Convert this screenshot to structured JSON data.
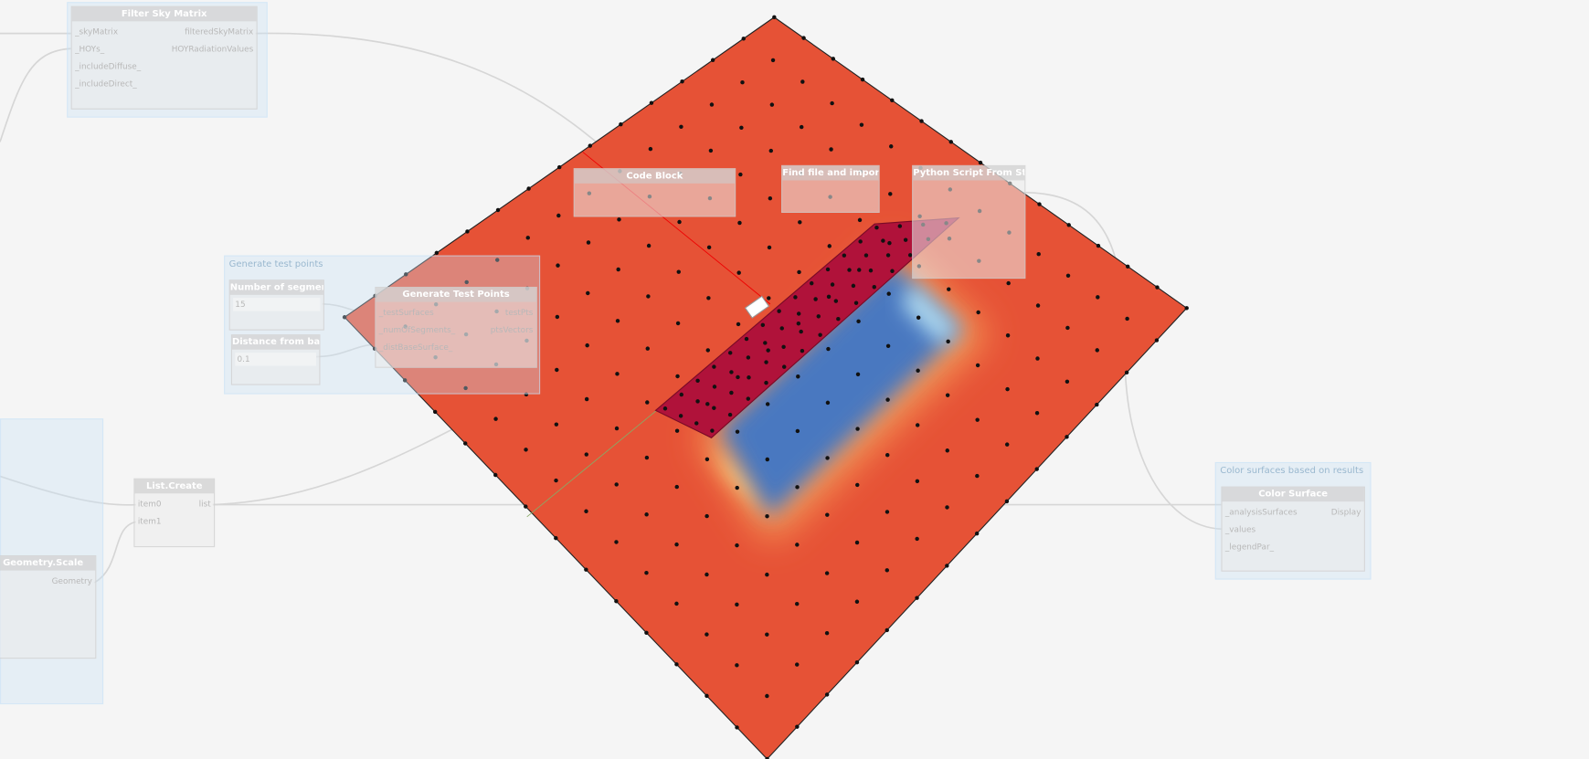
{
  "groups": [
    {
      "title": "Generate test points"
    },
    {
      "title": "Color surfaces based on results"
    }
  ],
  "nodes": [
    {
      "title": "Filter Sky Matrix",
      "inputs": [
        "_skyMatrix",
        "_HOYs_",
        "_includeDiffuse_",
        "_includeDirect_"
      ],
      "outputs": [
        "filteredSkyMatrix",
        "HOYRadiationValues"
      ]
    },
    {
      "title": "Number of segments",
      "value": "15"
    },
    {
      "title": "Distance from base",
      "value": "0.1"
    },
    {
      "title": "Generate Test Points",
      "inputs": [
        "_testSurfaces",
        "_numOfSegments_",
        "_distBaseSurface_"
      ],
      "outputs": [
        "testPts",
        "ptsVectors"
      ]
    },
    {
      "title": "Code Block"
    },
    {
      "title": "Find file and import it"
    },
    {
      "title": "Python Script From String"
    },
    {
      "title": "List.Create",
      "inputs": [
        "item0",
        "item1"
      ],
      "outputs": [
        "list"
      ]
    },
    {
      "title": "Geometry.Scale",
      "outputs": [
        "Geometry"
      ]
    },
    {
      "title": "Color Surface",
      "inputs": [
        "_analysisSurfaces",
        "_values",
        "_legendPar_"
      ],
      "outputs": [
        "Display"
      ]
    }
  ]
}
